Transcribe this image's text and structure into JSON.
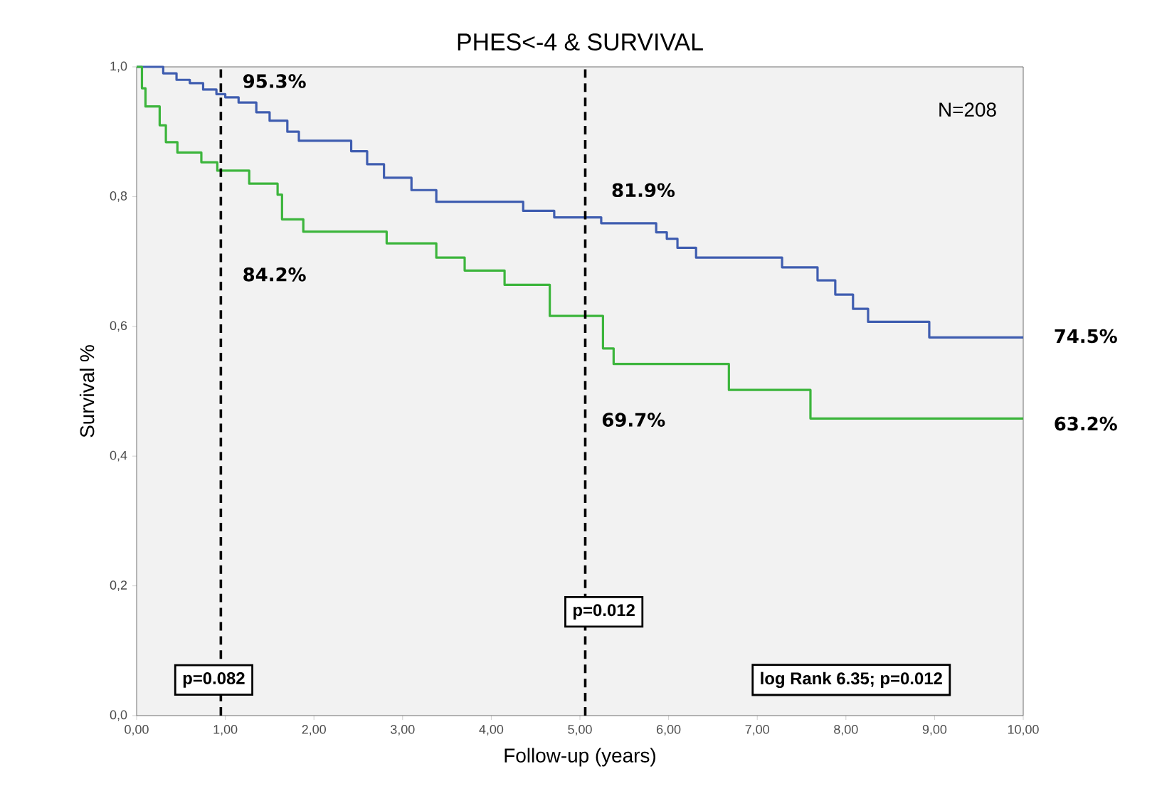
{
  "chart_data": {
    "type": "step",
    "title": "PHES<-4 & SURVIVAL",
    "xlabel": "Follow-up (years)",
    "ylabel": "Survival %",
    "x": [
      0,
      0.3,
      0.45,
      0.6,
      0.75,
      0.9,
      1.0,
      1.15,
      1.35,
      1.5,
      1.7,
      1.83,
      2.42,
      2.6,
      2.79,
      3.1,
      3.38,
      4.36,
      4.71,
      5.24,
      5.86,
      5.98,
      6.1,
      6.31,
      7.28,
      7.68,
      7.88,
      8.08,
      8.25,
      8.94,
      10
    ],
    "series": [
      {
        "color": "#3f5db0",
        "values": [
          1.0,
          0.99,
          0.98,
          0.975,
          0.965,
          0.958,
          0.953,
          0.945,
          0.93,
          0.917,
          0.9,
          0.886,
          0.87,
          0.85,
          0.829,
          0.81,
          0.792,
          0.778,
          0.768,
          0.759,
          0.745,
          0.735,
          0.721,
          0.706,
          0.691,
          0.671,
          0.649,
          0.627,
          0.607,
          0.583,
          0.583
        ]
      },
      {
        "color": "#3cb53c",
        "x": [
          0,
          0.06,
          0.1,
          0.26,
          0.33,
          0.46,
          0.73,
          0.91,
          1.27,
          1.59,
          1.64,
          1.88,
          2.82,
          3.38,
          3.7,
          4.15,
          4.66,
          5.26,
          5.38,
          6.68,
          7.6,
          10
        ],
        "values": [
          1.0,
          0.967,
          0.939,
          0.91,
          0.884,
          0.868,
          0.853,
          0.84,
          0.82,
          0.803,
          0.765,
          0.746,
          0.728,
          0.706,
          0.686,
          0.664,
          0.616,
          0.566,
          0.542,
          0.502,
          0.458,
          0.458
        ]
      }
    ],
    "xlim": [
      0,
      10
    ],
    "ylim": [
      0,
      1
    ],
    "xticks": [
      {
        "value": 0,
        "label": "0,00"
      },
      {
        "value": 1,
        "label": "1,00"
      },
      {
        "value": 2,
        "label": "2,00"
      },
      {
        "value": 3,
        "label": "3,00"
      },
      {
        "value": 4,
        "label": "4,00"
      },
      {
        "value": 5,
        "label": "5,00"
      },
      {
        "value": 6,
        "label": "6,00"
      },
      {
        "value": 7,
        "label": "7,00"
      },
      {
        "value": 8,
        "label": "8,00"
      },
      {
        "value": 9,
        "label": "9,00"
      },
      {
        "value": 10,
        "label": "10,00"
      }
    ],
    "yticks": [
      {
        "value": 0,
        "label": "0,0"
      },
      {
        "value": 0.2,
        "label": "0,2"
      },
      {
        "value": 0.4,
        "label": "0,4"
      },
      {
        "value": 0.6,
        "label": "0,6"
      },
      {
        "value": 0.8,
        "label": "0,8"
      },
      {
        "value": 1,
        "label": "1,0"
      }
    ],
    "ref_lines": [
      {
        "axis": "x",
        "value": 0.95,
        "color": "#000000",
        "line_style": "dashed"
      },
      {
        "axis": "x",
        "value": 5.06,
        "color": "#000000",
        "line_style": "dashed"
      }
    ],
    "annotations": [
      "95.3%",
      "84.2%",
      "81.9%",
      "69.7%",
      "74.5%",
      "63.2%",
      "N=208",
      "p=0.082",
      "p=0.012",
      "log Rank 6.35; p=0.012"
    ],
    "grid": false,
    "marker": "none",
    "line_style": "solid"
  }
}
